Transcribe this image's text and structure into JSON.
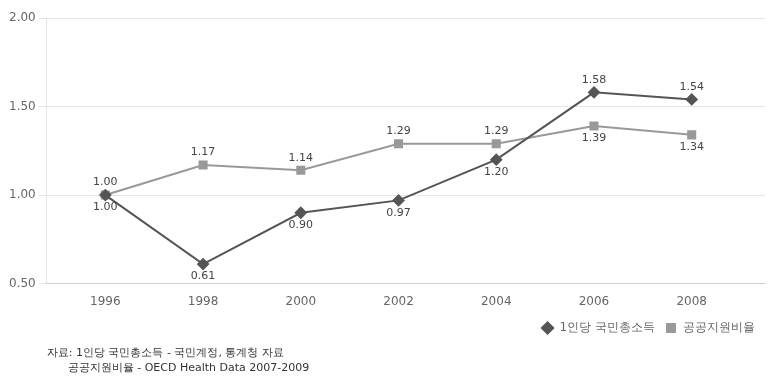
{
  "chart_data": {
    "type": "line",
    "x": [
      1996,
      1998,
      2000,
      2002,
      2004,
      2006,
      2008
    ],
    "series": [
      {
        "name": "1인당 국민총소득",
        "color": "#555555",
        "marker": "diamond",
        "values": [
          1.0,
          0.61,
          0.9,
          0.97,
          1.2,
          1.58,
          1.54
        ],
        "value_labels": [
          "1.00",
          "0.61",
          "0.90",
          "0.97",
          "1.20",
          "1.58",
          "1.54"
        ]
      },
      {
        "name": "공공지원비율",
        "color": "#999999",
        "marker": "square",
        "values": [
          1.0,
          1.17,
          1.14,
          1.29,
          1.29,
          1.39,
          1.34
        ],
        "value_labels": [
          "1.00",
          "1.17",
          "1.14",
          "1.29",
          "1.29",
          "1.39",
          "1.34"
        ]
      }
    ],
    "xlim": [
      1994.8,
      2009.5
    ],
    "xticks": [
      1996,
      1998,
      2000,
      2002,
      2004,
      2006,
      2008
    ],
    "ylim": [
      0.5,
      2.0
    ],
    "yticks": [
      {
        "value": 0.5,
        "label": "0.50"
      },
      {
        "value": 1.0,
        "label": "1.00"
      },
      {
        "value": 1.5,
        "label": "1.50"
      },
      {
        "value": 2.0,
        "label": "2.00"
      }
    ],
    "grid": true,
    "legend": "lower right",
    "data_labels": true,
    "annotations": [
      "자료: 1인당 국민총소득 - 국민계정, 통계청 자료",
      "      공공지원비율 - OECD Health Data 2007-2009"
    ]
  }
}
